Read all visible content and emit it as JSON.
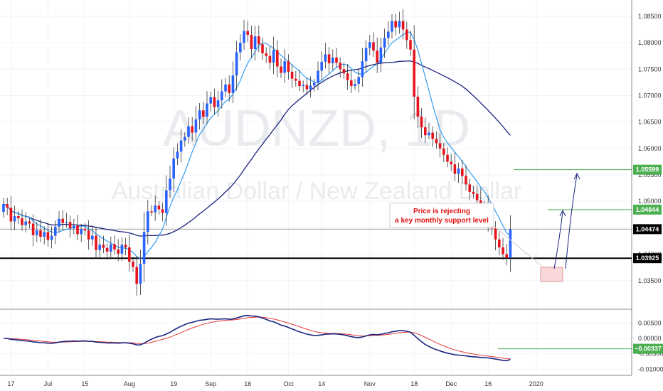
{
  "watermark": {
    "symbol": "AUDNZD, 1D",
    "name": "Australian Dollar / New Zealand Dollar"
  },
  "annotation": {
    "line1": "Price is rejecting",
    "line2": "a key monthly support level"
  },
  "chart_data": [
    {
      "type": "candlestick",
      "pane": "price",
      "title": "",
      "ylim": [
        1.03,
        1.087
      ],
      "y_ticks": [
        {
          "value": 1.035,
          "label": "1.03500"
        },
        {
          "value": 1.04,
          "label": "1.04000"
        },
        {
          "value": 1.045,
          "label": "1.04500"
        },
        {
          "value": 1.05,
          "label": "1.05000"
        },
        {
          "value": 1.055,
          "label": "1.05500"
        },
        {
          "value": 1.06,
          "label": "1.06000"
        },
        {
          "value": 1.065,
          "label": "1.06500"
        },
        {
          "value": 1.07,
          "label": "1.07000"
        },
        {
          "value": 1.075,
          "label": "1.07500"
        },
        {
          "value": 1.08,
          "label": "1.08000"
        },
        {
          "value": 1.085,
          "label": "1.08500"
        }
      ],
      "x_ticks": [
        {
          "index": 2,
          "label": "17"
        },
        {
          "index": 12,
          "label": "Jul"
        },
        {
          "index": 22,
          "label": "15"
        },
        {
          "index": 34,
          "label": "Aug"
        },
        {
          "index": 46,
          "label": "19"
        },
        {
          "index": 56,
          "label": "Sep"
        },
        {
          "index": 66,
          "label": "16"
        },
        {
          "index": 77,
          "label": "Oct"
        },
        {
          "index": 86,
          "label": "14"
        },
        {
          "index": 99,
          "label": "Nov"
        },
        {
          "index": 111,
          "label": "18"
        },
        {
          "index": 121,
          "label": "Dec"
        },
        {
          "index": 131,
          "label": "16"
        },
        {
          "index": 144,
          "label": "2020"
        }
      ],
      "x_domain": [
        0,
        148
      ],
      "closes": [
        1.0495,
        1.0488,
        1.0462,
        1.0472,
        1.0468,
        1.0455,
        1.0462,
        1.0458,
        1.0436,
        1.0445,
        1.0433,
        1.0442,
        1.0427,
        1.0435,
        1.0452,
        1.0467,
        1.0459,
        1.0461,
        1.0449,
        1.0454,
        1.0438,
        1.0448,
        1.0445,
        1.0428,
        1.0435,
        1.0408,
        1.0418,
        1.0412,
        1.0405,
        1.0419,
        1.0409,
        1.0401,
        1.0418,
        1.0413,
        1.0386,
        1.0376,
        1.0344,
        1.0382,
        1.0442,
        1.0481,
        1.0479,
        1.0492,
        1.0485,
        1.0478,
        1.0521,
        1.0543,
        1.0581,
        1.0594,
        1.0615,
        1.0622,
        1.0642,
        1.063,
        1.0655,
        1.0672,
        1.066,
        1.0685,
        1.0697,
        1.0678,
        1.0691,
        1.0708,
        1.0721,
        1.0705,
        1.0738,
        1.0782,
        1.08,
        1.0822,
        1.0815,
        1.0788,
        1.0812,
        1.0797,
        1.078,
        1.0775,
        1.0762,
        1.0786,
        1.0755,
        1.0743,
        1.0765,
        1.0745,
        1.0732,
        1.0728,
        1.0718,
        1.072,
        1.0712,
        1.0719,
        1.0724,
        1.0747,
        1.0764,
        1.0778,
        1.0761,
        1.0772,
        1.0762,
        1.075,
        1.0742,
        1.0729,
        1.0718,
        1.0722,
        1.0735,
        1.0765,
        1.079,
        1.0801,
        1.0785,
        1.0762,
        1.0791,
        1.0809,
        1.0821,
        1.0841,
        1.0829,
        1.0841,
        1.0825,
        1.0805,
        1.0787,
        1.0698,
        1.066,
        1.064,
        1.0625,
        1.063,
        1.0618,
        1.061,
        1.06,
        1.0588,
        1.0575,
        1.057,
        1.0552,
        1.0562,
        1.0548,
        1.0532,
        1.0518,
        1.0514,
        1.0502,
        1.0485,
        1.0491,
        1.0464,
        1.0449,
        1.0428,
        1.0413,
        1.04,
        1.0393,
        1.0447
      ],
      "price_lines": [
        {
          "value": 1.05599,
          "label": "1.05599",
          "color": "#4caf50"
        },
        {
          "value": 1.04844,
          "label": "1.04844",
          "color": "#4caf50"
        },
        {
          "value": 1.04474,
          "label": "1.04474",
          "color": "#000000"
        },
        {
          "value": 1.03925,
          "label": "1.03925",
          "color": "#000000"
        }
      ],
      "colors": {
        "up": "#2962ff",
        "down": "#e8141d",
        "fast_ma": "#2196f3",
        "slow_ma": "#1a237e"
      }
    },
    {
      "type": "line",
      "pane": "oscillator",
      "title": "",
      "ylim": [
        -0.012,
        0.009
      ],
      "y_ticks": [
        {
          "value": 0.005,
          "label": "0.00500"
        },
        {
          "value": 0.0,
          "label": "0.00000"
        },
        {
          "value": -0.005,
          "label": "-0.00500"
        },
        {
          "value": -0.01,
          "label": "-0.01000"
        }
      ],
      "marker": {
        "value": -0.00337,
        "label": "−0.00337",
        "color": "#4caf50"
      },
      "series": [
        {
          "color": "#1a237e"
        },
        {
          "color": "#e53935"
        }
      ]
    }
  ]
}
